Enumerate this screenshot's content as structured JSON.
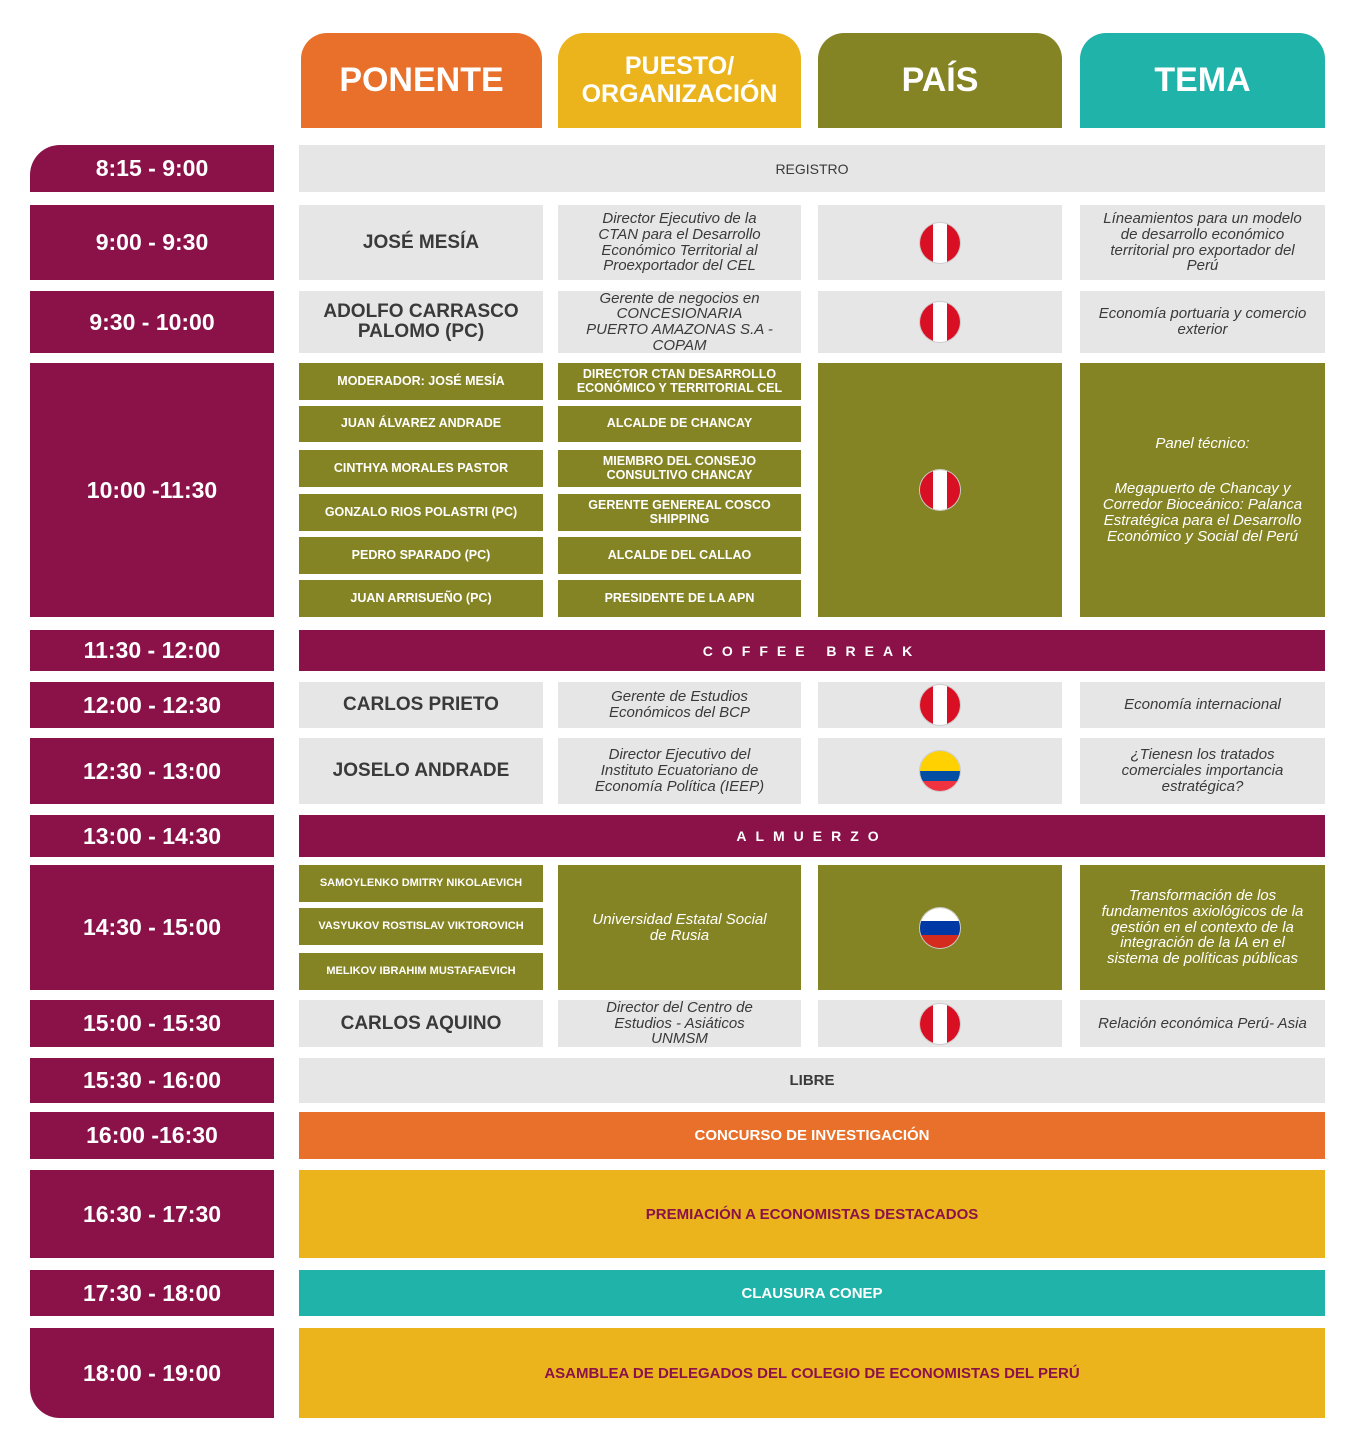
{
  "header": {
    "columns": [
      "PONENTE",
      "PUESTO/ ORGANIZACIÓN",
      "PAÍS",
      "TEMA"
    ]
  },
  "schedule": [
    {
      "time": "8:15 - 9:00",
      "event": "REGISTRO"
    },
    {
      "time": "9:00 - 9:30",
      "speakers": [
        "JOSÉ MESÍA"
      ],
      "positions": [
        "Director Ejecutivo de la CTAN para el Desarrollo Económico Territorial al Proexportador del CEL"
      ],
      "topic": "Líneamientos para un modelo de desarrollo económico territorial pro exportador del Perú"
    },
    {
      "time": "9:30 - 10:00",
      "speakers": [
        "ADOLFO CARRASCO PALOMO (PC)"
      ],
      "positions": [
        "Gerente de negocios en CONCESIONARIA PUERTO AMAZONAS S.A - COPAM"
      ],
      "topic": "Economía  portuaria y comercio exterior"
    },
    {
      "time": "10:00 -11:30",
      "speakers": [
        "MODERADOR: JOSÉ MESÍA",
        "JUAN ÁLVAREZ ANDRADE",
        "CINTHYA MORALES PASTOR",
        "GONZALO RIOS POLASTRI (PC)",
        "PEDRO SPARADO (PC)",
        "JUAN ARRISUEÑO (PC)"
      ],
      "positions": [
        "DIRECTOR CTAN DESARROLLO ECONÓMICO Y TERRITORIAL CEL",
        "ALCALDE DE CHANCAY",
        "MIEMBRO DEL CONSEJO CONSULTIVO CHANCAY",
        "GERENTE GENEREAL COSCO SHIPPING",
        "ALCALDE DEL CALLAO",
        "PRESIDENTE DE LA APN"
      ],
      "topic_heading": "Panel técnico:",
      "topic": "Megapuerto de Chancay y  Corredor Bioceánico: Palanca Estratégica para el Desarrollo Económico y Social del Perú"
    },
    {
      "time": "11:30 - 12:00",
      "event": "COFFEE BREAK"
    },
    {
      "time": "12:00 - 12:30",
      "speakers": [
        "CARLOS PRIETO"
      ],
      "positions": [
        "Gerente de Estudios Económicos del BCP"
      ],
      "topic": "Economía internacional"
    },
    {
      "time": "12:30 - 13:00",
      "speakers": [
        "JOSELO ANDRADE"
      ],
      "positions": [
        "Director Ejecutivo del Instituto Ecuatoriano de Economía Política (IEEP)"
      ],
      "topic": "¿Tienesn los tratados comerciales importancia estratégica?"
    },
    {
      "time": "13:00 - 14:30",
      "event": "ALMUERZO"
    },
    {
      "time": "14:30 - 15:00",
      "speakers": [
        "SAMOYLENKO DMITRY NIKOLAEVICH",
        "VASYUKOV ROSTISLAV VIKTOROVICH",
        "MELIKOV IBRAHIM MUSTAFAEVICH"
      ],
      "positions": [
        "Universidad Estatal Social de Rusia"
      ],
      "topic": "Transformación de los fundamentos axiológicos de la gestión en el contexto de la integración de la IA en el sistema de políticas públicas"
    },
    {
      "time": "15:00 - 15:30",
      "speakers": [
        "CARLOS AQUINO"
      ],
      "positions": [
        "Director del Centro de Estudios - Asiáticos UNMSM"
      ],
      "topic": "Relación económica Perú- Asia"
    },
    {
      "time": "15:30 - 16:00",
      "event": "LIBRE"
    },
    {
      "time": "16:00 -16:30",
      "event": "CONCURSO DE INVESTIGACIÓN"
    },
    {
      "time": "16:30 - 17:30",
      "event": "PREMIACIÓN A ECONOMISTAS  DESTACADOS"
    },
    {
      "time": "17:30 - 18:00",
      "event": "CLAUSURA CONEP"
    },
    {
      "time": "18:00 - 19:00",
      "event": "ASAMBLEA DE DELEGADOS DEL COLEGIO DE ECONOMISTAS DEL PERÚ"
    }
  ]
}
